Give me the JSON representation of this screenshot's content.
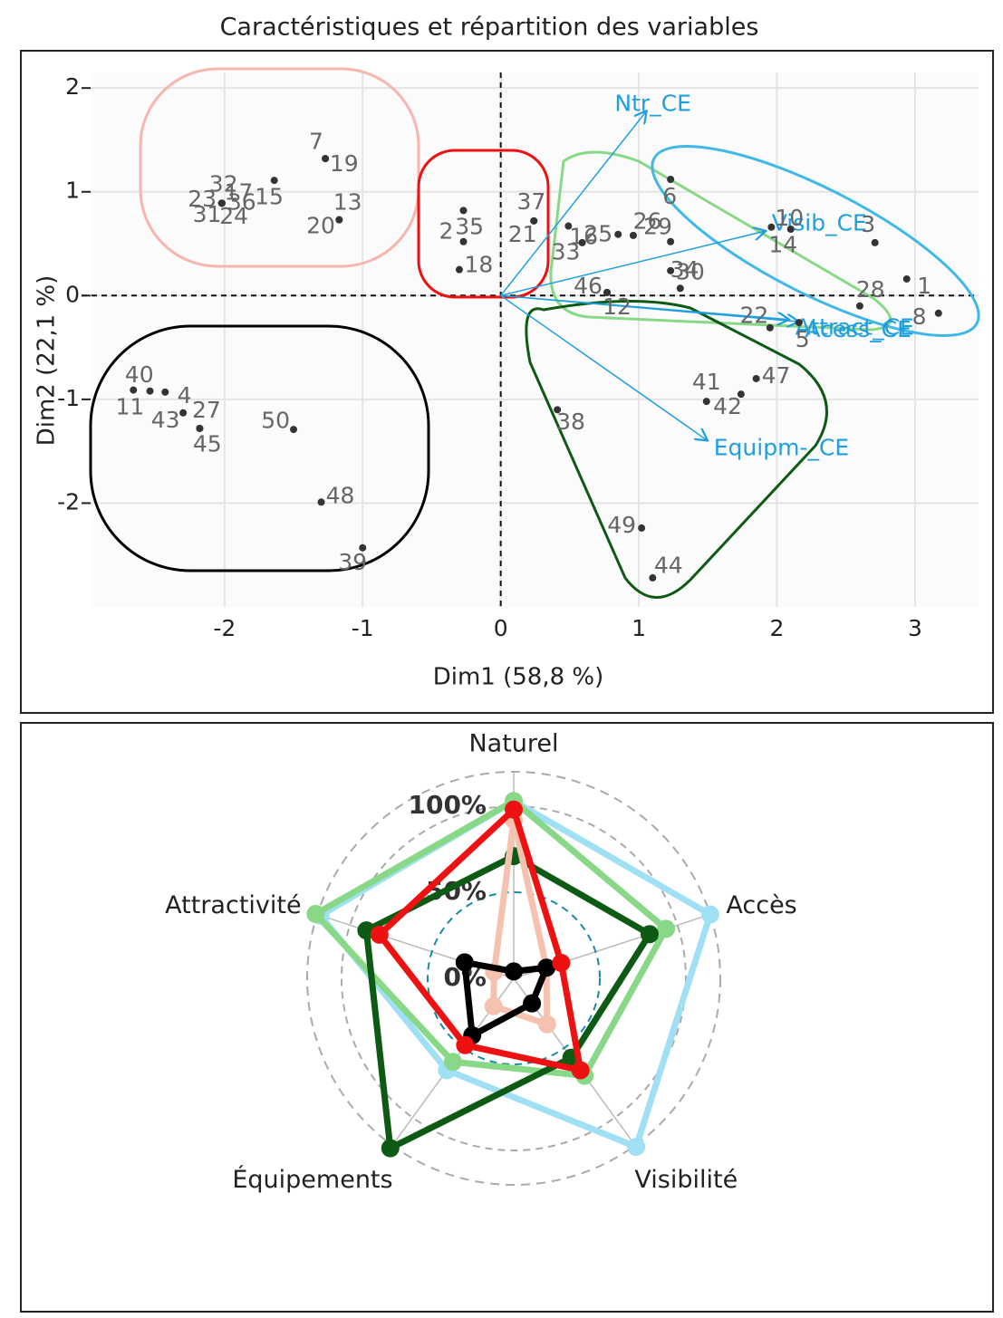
{
  "chart_data": [
    {
      "type": "scatter",
      "title": "Caractéristiques et répartition des variables",
      "x_label": "Dim1 (58,8 %)",
      "y_label": "Dim2 (22,1 %)",
      "xlim": [
        -2.97,
        3.46
      ],
      "ylim": [
        -3.0,
        2.15
      ],
      "xticks": [
        -2,
        -1,
        0,
        1,
        2,
        3
      ],
      "yticks": [
        -2,
        -1,
        0,
        1,
        2
      ],
      "grid": true,
      "point_color": "#333333",
      "label_color": "#666666",
      "labels": [
        "36",
        "31",
        "32",
        "24",
        "23",
        "17",
        "15",
        "7",
        "19",
        "20",
        "13",
        "35",
        "2",
        "18",
        "21",
        "37",
        "16",
        "25",
        "26",
        "6",
        "29",
        "30",
        "33",
        "34",
        "12",
        "46",
        "10",
        "14",
        "3",
        "1",
        "8",
        "28",
        "5",
        "22",
        "47",
        "42",
        "41",
        "38",
        "49",
        "44",
        "11",
        "40",
        "4",
        "43",
        "27",
        "45",
        "50",
        "48",
        "39"
      ],
      "x": [
        -2.02,
        -2.02,
        -2.02,
        -2.02,
        -2.02,
        -2.02,
        -1.64,
        -1.27,
        -1.27,
        -1.17,
        -1.17,
        -0.27,
        -0.27,
        -0.3,
        0.24,
        0.24,
        0.49,
        0.85,
        0.96,
        1.23,
        1.23,
        1.23,
        0.59,
        1.3,
        0.77,
        0.77,
        1.96,
        2.1,
        2.71,
        2.94,
        3.17,
        2.6,
        2.16,
        1.95,
        1.85,
        1.74,
        1.49,
        0.41,
        1.02,
        1.1,
        -2.66,
        -2.54,
        -2.43,
        -2.3,
        -2.18,
        -2.18,
        -1.5,
        -1.3,
        -1.0
      ],
      "y": [
        0.89,
        0.89,
        0.89,
        0.89,
        0.89,
        0.89,
        1.11,
        1.32,
        1.32,
        0.73,
        0.73,
        0.82,
        0.52,
        0.25,
        0.72,
        0.72,
        0.67,
        0.59,
        0.58,
        1.12,
        0.52,
        0.24,
        0.51,
        0.07,
        0.03,
        0.03,
        0.66,
        0.64,
        0.51,
        0.16,
        -0.17,
        -0.1,
        -0.26,
        -0.31,
        -0.8,
        -0.95,
        -1.02,
        -1.1,
        -2.24,
        -2.72,
        -0.91,
        -0.92,
        -0.93,
        -1.13,
        -1.28,
        -1.28,
        -1.29,
        -1.99,
        -2.43
      ],
      "vectors": {
        "color": "#1e9fe0",
        "labels": [
          "Ntr_CE",
          "Visib_CE",
          "Attract_CE",
          "Acess_CE",
          "Equipm-_CE"
        ],
        "x": [
          1.05,
          1.91,
          2.08,
          2.15,
          1.49
        ],
        "y": [
          1.77,
          0.62,
          -0.23,
          -0.25,
          -1.39
        ]
      }
    },
    {
      "type": "radar",
      "categories": [
        "Naturel",
        "Accès",
        "Visibilité",
        "Équipements",
        "Attractivité"
      ],
      "rlim": [
        0,
        120
      ],
      "rticks": [
        {
          "value": 0,
          "label": "0%"
        },
        {
          "value": 50,
          "label": "50%"
        },
        {
          "value": 100,
          "label": "100%"
        }
      ],
      "series": [
        {
          "color": "#9fe0f5",
          "values": [
            103,
            120,
            121,
            66,
            118
          ]
        },
        {
          "color": "#88d888",
          "values": [
            103,
            93,
            70,
            60,
            121
          ]
        },
        {
          "color": "#0d5a14",
          "values": [
            71,
            83,
            57,
            122,
            90
          ]
        },
        {
          "color": "#f5c2b0",
          "values": [
            92,
            20,
            33,
            20,
            12
          ]
        },
        {
          "color": "#000000",
          "values": [
            4,
            20,
            18,
            41,
            30
          ]
        },
        {
          "color": "#ee1111",
          "values": [
            98,
            29,
            66,
            48,
            82
          ]
        }
      ]
    }
  ]
}
